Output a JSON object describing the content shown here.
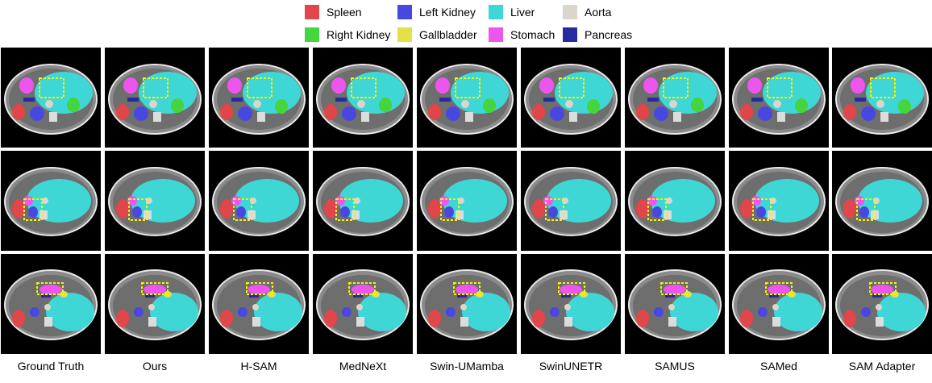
{
  "legend": [
    {
      "key": "spleen",
      "label": "Spleen",
      "color": "#e0464a"
    },
    {
      "key": "left_kidney",
      "label": "Left Kidney",
      "color": "#4848e0"
    },
    {
      "key": "liver",
      "label": "Liver",
      "color": "#3fd6d6"
    },
    {
      "key": "aorta",
      "label": "Aorta",
      "color": "#ddd5cb"
    },
    {
      "key": "right_kidney",
      "label": "Right Kidney",
      "color": "#43d63d"
    },
    {
      "key": "gallbladder",
      "label": "Gallbladder",
      "color": "#e4e048"
    },
    {
      "key": "stomach",
      "label": "Stomach",
      "color": "#ee55ee"
    },
    {
      "key": "pancreas",
      "label": "Pancreas",
      "color": "#2a2aa0"
    }
  ],
  "columns": [
    {
      "label": "Ground Truth"
    },
    {
      "label": "Ours"
    },
    {
      "label": "H-SAM"
    },
    {
      "label": "MedNeXt"
    },
    {
      "label": "Swin-UMamba"
    },
    {
      "label": "SwinUNETR"
    },
    {
      "label": "SAMUS"
    },
    {
      "label": "SAMed"
    },
    {
      "label": "SAM Adapter"
    }
  ],
  "highlight_color": "#f5f500"
}
